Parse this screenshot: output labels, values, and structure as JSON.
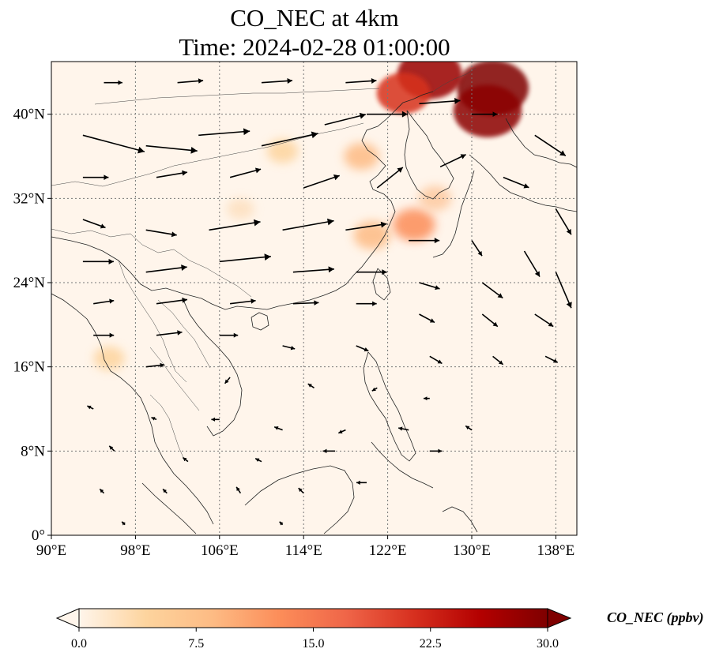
{
  "title": {
    "line1": "CO_NEC at 4km",
    "line2": "Time: 2024-02-28 01:00:00"
  },
  "map": {
    "lon_range": [
      90,
      140
    ],
    "lat_range": [
      0,
      45
    ],
    "lon_ticks": [
      {
        "value": 90,
        "label": "90°E"
      },
      {
        "value": 98,
        "label": "98°E"
      },
      {
        "value": 106,
        "label": "106°E"
      },
      {
        "value": 114,
        "label": "114°E"
      },
      {
        "value": 122,
        "label": "122°E"
      },
      {
        "value": 130,
        "label": "130°E"
      },
      {
        "value": 138,
        "label": "138°E"
      }
    ],
    "lat_ticks": [
      {
        "value": 0,
        "label": "0°"
      },
      {
        "value": 8,
        "label": "8°N"
      },
      {
        "value": 16,
        "label": "16°N"
      },
      {
        "value": 24,
        "label": "24°N"
      },
      {
        "value": 32,
        "label": "32°N"
      },
      {
        "value": 40,
        "label": "40°N"
      }
    ],
    "grid": true,
    "background_color": "#fff5eb"
  },
  "colorbar": {
    "label": "CO_NEC (ppbv)",
    "range": [
      0,
      30
    ],
    "extend": "both",
    "colormap": "OrRd-like",
    "stops": [
      "#fff5eb",
      "#fdd49e",
      "#fdbb84",
      "#fc8d59",
      "#ef6548",
      "#d7301f",
      "#b30000",
      "#7f0000"
    ],
    "ticks": [
      {
        "value": 0,
        "label": "0.0"
      },
      {
        "value": 7.5,
        "label": "7.5"
      },
      {
        "value": 15,
        "label": "15.0"
      },
      {
        "value": 22.5,
        "label": "22.5"
      },
      {
        "value": 30,
        "label": "30.0"
      }
    ]
  },
  "concentration_hotspots": [
    {
      "lon": 132.0,
      "lat": 42.5,
      "value": 30,
      "color": "#7f0000"
    },
    {
      "lon": 131.5,
      "lat": 40.3,
      "value": 28,
      "color": "#8b0000"
    },
    {
      "lon": 126.0,
      "lat": 43.8,
      "value": 26,
      "color": "#990000"
    },
    {
      "lon": 123.5,
      "lat": 42.0,
      "value": 20,
      "color": "#d7301f"
    },
    {
      "lon": 119.5,
      "lat": 36.0,
      "value": 10,
      "color": "#fdbb84"
    },
    {
      "lon": 112.0,
      "lat": 36.5,
      "value": 8,
      "color": "#fdd49e"
    },
    {
      "lon": 124.5,
      "lat": 29.5,
      "value": 14,
      "color": "#fc8d59"
    },
    {
      "lon": 120.5,
      "lat": 28.5,
      "value": 11,
      "color": "#fdbb84"
    },
    {
      "lon": 108.0,
      "lat": 31.0,
      "value": 6,
      "color": "#fde0c0"
    },
    {
      "lon": 95.5,
      "lat": 16.8,
      "value": 8,
      "color": "#fdd49e"
    },
    {
      "lon": 126.5,
      "lat": 32.0,
      "value": 9,
      "color": "#fdc9a0"
    }
  ],
  "wind_vectors": [
    {
      "lon": 93,
      "lat": 38,
      "u": 6,
      "v": -1.6
    },
    {
      "lon": 99,
      "lat": 37,
      "u": 5,
      "v": -0.5
    },
    {
      "lon": 104,
      "lat": 38,
      "u": 5,
      "v": 0.4
    },
    {
      "lon": 110,
      "lat": 37,
      "u": 5.5,
      "v": 1.2
    },
    {
      "lon": 116,
      "lat": 39,
      "u": 4,
      "v": 1.0
    },
    {
      "lon": 120,
      "lat": 40,
      "u": 4,
      "v": 0
    },
    {
      "lon": 125,
      "lat": 41,
      "u": 4,
      "v": 0.3
    },
    {
      "lon": 130,
      "lat": 40,
      "u": 2.5,
      "v": 0
    },
    {
      "lon": 136,
      "lat": 38,
      "u": 3,
      "v": -2.0
    },
    {
      "lon": 95,
      "lat": 43,
      "u": 1.8,
      "v": 0
    },
    {
      "lon": 102,
      "lat": 43,
      "u": 2.5,
      "v": 0.2
    },
    {
      "lon": 110,
      "lat": 43,
      "u": 3,
      "v": 0.2
    },
    {
      "lon": 118,
      "lat": 43,
      "u": 3,
      "v": 0.2
    },
    {
      "lon": 93,
      "lat": 34,
      "u": 2.5,
      "v": 0
    },
    {
      "lon": 100,
      "lat": 34,
      "u": 3,
      "v": 0.5
    },
    {
      "lon": 107,
      "lat": 34,
      "u": 3,
      "v": 0.8
    },
    {
      "lon": 114,
      "lat": 33,
      "u": 3.5,
      "v": 1.2
    },
    {
      "lon": 121,
      "lat": 33,
      "u": 2.5,
      "v": 2.0
    },
    {
      "lon": 127,
      "lat": 35,
      "u": 2.5,
      "v": 1.2
    },
    {
      "lon": 133,
      "lat": 34,
      "u": 2.5,
      "v": -1.0
    },
    {
      "lon": 138,
      "lat": 31,
      "u": 1.5,
      "v": -2.5
    },
    {
      "lon": 93,
      "lat": 30,
      "u": 2.2,
      "v": -0.8
    },
    {
      "lon": 99,
      "lat": 29,
      "u": 3,
      "v": -0.5
    },
    {
      "lon": 105,
      "lat": 29,
      "u": 5,
      "v": 0.8
    },
    {
      "lon": 112,
      "lat": 29,
      "u": 5,
      "v": 0.9
    },
    {
      "lon": 118,
      "lat": 29,
      "u": 4,
      "v": 0.6
    },
    {
      "lon": 124,
      "lat": 28,
      "u": 3,
      "v": 0
    },
    {
      "lon": 130,
      "lat": 28,
      "u": 1.0,
      "v": -1.5
    },
    {
      "lon": 135,
      "lat": 27,
      "u": 1.5,
      "v": -2.5
    },
    {
      "lon": 138,
      "lat": 25,
      "u": 1.5,
      "v": -3.5
    },
    {
      "lon": 93,
      "lat": 26,
      "u": 3,
      "v": 0
    },
    {
      "lon": 99,
      "lat": 25,
      "u": 4,
      "v": 0.5
    },
    {
      "lon": 106,
      "lat": 26,
      "u": 5,
      "v": 0.5
    },
    {
      "lon": 113,
      "lat": 25,
      "u": 4,
      "v": 0.3
    },
    {
      "lon": 119,
      "lat": 25,
      "u": 3,
      "v": 0
    },
    {
      "lon": 125,
      "lat": 24,
      "u": 2,
      "v": -0.6
    },
    {
      "lon": 131,
      "lat": 24,
      "u": 2,
      "v": -1.5
    },
    {
      "lon": 94,
      "lat": 22,
      "u": 2,
      "v": 0.3
    },
    {
      "lon": 100,
      "lat": 22,
      "u": 3,
      "v": 0.4
    },
    {
      "lon": 107,
      "lat": 22,
      "u": 2.5,
      "v": 0.3
    },
    {
      "lon": 113,
      "lat": 22,
      "u": 2.5,
      "v": 0.1
    },
    {
      "lon": 119,
      "lat": 22,
      "u": 2,
      "v": 0
    },
    {
      "lon": 125,
      "lat": 21,
      "u": 1.5,
      "v": -0.8
    },
    {
      "lon": 131,
      "lat": 21,
      "u": 1.5,
      "v": -1.2
    },
    {
      "lon": 136,
      "lat": 21,
      "u": 1.8,
      "v": -1.2
    },
    {
      "lon": 94,
      "lat": 19,
      "u": 2,
      "v": 0
    },
    {
      "lon": 100,
      "lat": 19,
      "u": 2.5,
      "v": 0.3
    },
    {
      "lon": 106,
      "lat": 19,
      "u": 1.8,
      "v": 0
    },
    {
      "lon": 112,
      "lat": 18,
      "u": 1.2,
      "v": -0.3
    },
    {
      "lon": 119,
      "lat": 18,
      "u": 1.2,
      "v": -0.5
    },
    {
      "lon": 126,
      "lat": 17,
      "u": 1.2,
      "v": -0.7
    },
    {
      "lon": 132,
      "lat": 17,
      "u": 1.0,
      "v": -0.8
    },
    {
      "lon": 137,
      "lat": 17,
      "u": 1.2,
      "v": -0.6
    },
    {
      "lon": 99,
      "lat": 16,
      "u": 1.8,
      "v": 0.2
    },
    {
      "lon": 107,
      "lat": 15,
      "u": -0.5,
      "v": -0.6
    },
    {
      "lon": 115,
      "lat": 14,
      "u": -0.6,
      "v": 0.4
    },
    {
      "lon": 121,
      "lat": 14,
      "u": -0.5,
      "v": -0.3
    },
    {
      "lon": 126,
      "lat": 13,
      "u": -0.6,
      "v": 0
    },
    {
      "lon": 94,
      "lat": 12,
      "u": -0.6,
      "v": 0.3
    },
    {
      "lon": 100,
      "lat": 11,
      "u": -0.5,
      "v": 0.2
    },
    {
      "lon": 106,
      "lat": 11,
      "u": -0.8,
      "v": 0
    },
    {
      "lon": 112,
      "lat": 10,
      "u": -0.8,
      "v": 0.3
    },
    {
      "lon": 118,
      "lat": 10,
      "u": -0.7,
      "v": -0.3
    },
    {
      "lon": 124,
      "lat": 10,
      "u": -1.0,
      "v": 0.2
    },
    {
      "lon": 130,
      "lat": 10,
      "u": -0.6,
      "v": 0.4
    },
    {
      "lon": 96,
      "lat": 8,
      "u": -0.5,
      "v": 0.5
    },
    {
      "lon": 103,
      "lat": 7,
      "u": -0.5,
      "v": 0.4
    },
    {
      "lon": 110,
      "lat": 7,
      "u": -0.6,
      "v": 0.3
    },
    {
      "lon": 117,
      "lat": 8,
      "u": -1.2,
      "v": 0
    },
    {
      "lon": 126,
      "lat": 8,
      "u": 1.2,
      "v": 0
    },
    {
      "lon": 95,
      "lat": 4,
      "u": -0.4,
      "v": 0.4
    },
    {
      "lon": 101,
      "lat": 4,
      "u": -0.4,
      "v": 0.4
    },
    {
      "lon": 108,
      "lat": 4,
      "u": -0.4,
      "v": 0.6
    },
    {
      "lon": 114,
      "lat": 4,
      "u": -0.5,
      "v": 0.5
    },
    {
      "lon": 120,
      "lat": 5,
      "u": -1.0,
      "v": 0
    },
    {
      "lon": 97,
      "lat": 1,
      "u": -0.3,
      "v": 0.3
    },
    {
      "lon": 112,
      "lat": 1,
      "u": -0.3,
      "v": 0.3
    }
  ]
}
